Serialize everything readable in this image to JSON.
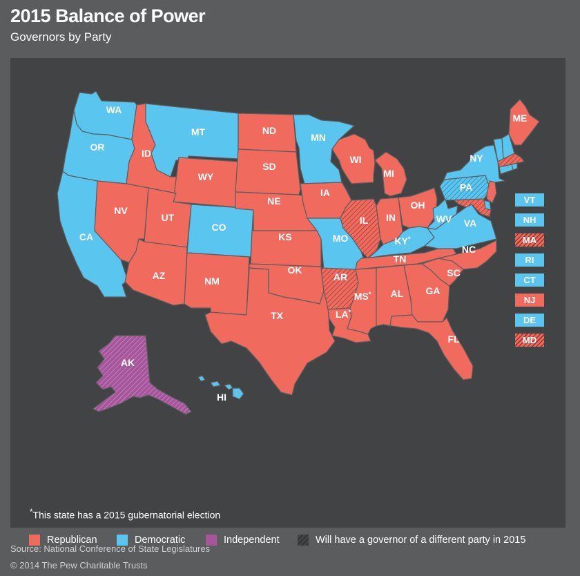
{
  "title": "2015 Balance of Power",
  "subtitle": "Governors by Party",
  "colors": {
    "republican": "#f06a5e",
    "democratic": "#5ac5ef",
    "independent": "#a5569b",
    "background": "#5a5c5d",
    "panel": "#414344"
  },
  "states": [
    {
      "abbr": "WA",
      "party": "democratic",
      "changing": false,
      "election_2015": false
    },
    {
      "abbr": "OR",
      "party": "democratic",
      "changing": false,
      "election_2015": false
    },
    {
      "abbr": "CA",
      "party": "democratic",
      "changing": false,
      "election_2015": false
    },
    {
      "abbr": "ID",
      "party": "republican",
      "changing": false,
      "election_2015": false
    },
    {
      "abbr": "NV",
      "party": "republican",
      "changing": false,
      "election_2015": false
    },
    {
      "abbr": "MT",
      "party": "democratic",
      "changing": false,
      "election_2015": false
    },
    {
      "abbr": "WY",
      "party": "republican",
      "changing": false,
      "election_2015": false
    },
    {
      "abbr": "UT",
      "party": "republican",
      "changing": false,
      "election_2015": false
    },
    {
      "abbr": "CO",
      "party": "democratic",
      "changing": false,
      "election_2015": false
    },
    {
      "abbr": "AZ",
      "party": "republican",
      "changing": false,
      "election_2015": false
    },
    {
      "abbr": "NM",
      "party": "republican",
      "changing": false,
      "election_2015": false
    },
    {
      "abbr": "ND",
      "party": "republican",
      "changing": false,
      "election_2015": false
    },
    {
      "abbr": "SD",
      "party": "republican",
      "changing": false,
      "election_2015": false
    },
    {
      "abbr": "NE",
      "party": "republican",
      "changing": false,
      "election_2015": false
    },
    {
      "abbr": "KS",
      "party": "republican",
      "changing": false,
      "election_2015": false
    },
    {
      "abbr": "OK",
      "party": "republican",
      "changing": false,
      "election_2015": false
    },
    {
      "abbr": "TX",
      "party": "republican",
      "changing": false,
      "election_2015": false
    },
    {
      "abbr": "MN",
      "party": "democratic",
      "changing": false,
      "election_2015": false
    },
    {
      "abbr": "IA",
      "party": "republican",
      "changing": false,
      "election_2015": false
    },
    {
      "abbr": "MO",
      "party": "democratic",
      "changing": false,
      "election_2015": false
    },
    {
      "abbr": "AR",
      "party": "republican",
      "changing": true,
      "election_2015": false
    },
    {
      "abbr": "LA",
      "party": "republican",
      "changing": false,
      "election_2015": true
    },
    {
      "abbr": "WI",
      "party": "republican",
      "changing": false,
      "election_2015": false
    },
    {
      "abbr": "IL",
      "party": "republican",
      "changing": true,
      "election_2015": false
    },
    {
      "abbr": "MI",
      "party": "republican",
      "changing": false,
      "election_2015": false
    },
    {
      "abbr": "IN",
      "party": "republican",
      "changing": false,
      "election_2015": false
    },
    {
      "abbr": "OH",
      "party": "republican",
      "changing": false,
      "election_2015": false
    },
    {
      "abbr": "KY",
      "party": "democratic",
      "changing": false,
      "election_2015": true
    },
    {
      "abbr": "TN",
      "party": "republican",
      "changing": false,
      "election_2015": false
    },
    {
      "abbr": "MS",
      "party": "republican",
      "changing": false,
      "election_2015": true
    },
    {
      "abbr": "AL",
      "party": "republican",
      "changing": false,
      "election_2015": false
    },
    {
      "abbr": "GA",
      "party": "republican",
      "changing": false,
      "election_2015": false
    },
    {
      "abbr": "FL",
      "party": "republican",
      "changing": false,
      "election_2015": false
    },
    {
      "abbr": "SC",
      "party": "republican",
      "changing": false,
      "election_2015": false
    },
    {
      "abbr": "NC",
      "party": "republican",
      "changing": false,
      "election_2015": false
    },
    {
      "abbr": "VA",
      "party": "democratic",
      "changing": false,
      "election_2015": false
    },
    {
      "abbr": "WV",
      "party": "democratic",
      "changing": false,
      "election_2015": false
    },
    {
      "abbr": "PA",
      "party": "democratic",
      "changing": true,
      "election_2015": false
    },
    {
      "abbr": "NY",
      "party": "democratic",
      "changing": false,
      "election_2015": false
    },
    {
      "abbr": "ME",
      "party": "republican",
      "changing": false,
      "election_2015": false
    },
    {
      "abbr": "AK",
      "party": "independent",
      "changing": true,
      "election_2015": false
    },
    {
      "abbr": "HI",
      "party": "democratic",
      "changing": false,
      "election_2015": false
    }
  ],
  "small_states": [
    {
      "abbr": "VT",
      "party": "democratic",
      "changing": false
    },
    {
      "abbr": "NH",
      "party": "democratic",
      "changing": false
    },
    {
      "abbr": "MA",
      "party": "republican",
      "changing": true
    },
    {
      "abbr": "RI",
      "party": "democratic",
      "changing": false
    },
    {
      "abbr": "CT",
      "party": "democratic",
      "changing": false
    },
    {
      "abbr": "NJ",
      "party": "republican",
      "changing": false
    },
    {
      "abbr": "DE",
      "party": "democratic",
      "changing": false
    },
    {
      "abbr": "MD",
      "party": "republican",
      "changing": true
    }
  ],
  "note": {
    "mark": "*",
    "text": "This state has a 2015 gubernatorial election"
  },
  "election_mark": "*",
  "legend": {
    "republican": "Republican",
    "democratic": "Democratic",
    "independent": "Independent",
    "changing": "Will have a governor of a different party in 2015"
  },
  "source": "Source: National Conference of State Legislatures",
  "copyright": "© 2014 The Pew Charitable Trusts"
}
